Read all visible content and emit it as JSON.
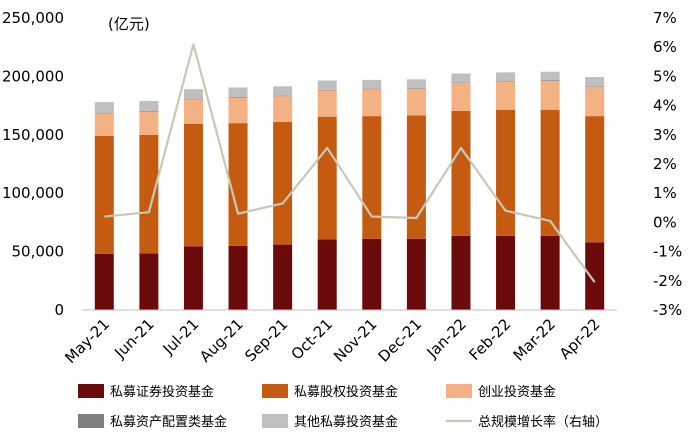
{
  "chart_data": {
    "type": "bar",
    "stacked": true,
    "unit_label": "(亿元)",
    "categories": [
      "May-21",
      "Jun-21",
      "Jul-21",
      "Aug-21",
      "Sep-21",
      "Oct-21",
      "Nov-21",
      "Dec-21",
      "Jan-22",
      "Feb-22",
      "Mar-22",
      "Apr-22"
    ],
    "y_left": {
      "min": 0,
      "max": 250000,
      "ticks": [
        "0",
        "50,000",
        "100,000",
        "150,000",
        "200,000",
        "250,000"
      ]
    },
    "y_right": {
      "min": -3,
      "max": 7,
      "ticks": [
        "-3%",
        "-2%",
        "-1%",
        "0%",
        "1%",
        "2%",
        "3%",
        "4%",
        "5%",
        "6%",
        "7%"
      ]
    },
    "series": [
      {
        "name": "私募证券投资基金",
        "color": "#6b0a0a",
        "values": [
          48000,
          48500,
          54500,
          55000,
          56000,
          60500,
          61000,
          61000,
          63500,
          63500,
          63500,
          58000
        ]
      },
      {
        "name": "私募股权投资基金",
        "color": "#c55a11",
        "values": [
          101000,
          101500,
          105000,
          105000,
          105000,
          105000,
          105000,
          105500,
          107000,
          108000,
          108000,
          108000
        ]
      },
      {
        "name": "创业投资基金",
        "color": "#f4b183",
        "values": [
          19000,
          19500,
          20500,
          21500,
          22000,
          22500,
          23000,
          23000,
          24000,
          24000,
          24500,
          25000
        ]
      },
      {
        "name": "私募资产配置类基金",
        "color": "#7f7f7f",
        "values": [
          500,
          500,
          500,
          500,
          500,
          500,
          500,
          500,
          500,
          500,
          500,
          500
        ]
      },
      {
        "name": "其他私募投资基金",
        "color": "#bfbfbf",
        "values": [
          9500,
          9000,
          8500,
          8500,
          8000,
          8000,
          7500,
          7500,
          7500,
          7500,
          7500,
          8000
        ]
      }
    ],
    "line": {
      "name": "总规模增长率（右轴）",
      "color": "#c9c8b4",
      "values": [
        0.2,
        0.35,
        6.1,
        0.3,
        0.65,
        2.55,
        0.2,
        0.15,
        2.55,
        0.4,
        0.05,
        -2.05
      ]
    },
    "legend_position": "bottom",
    "grid": false
  }
}
